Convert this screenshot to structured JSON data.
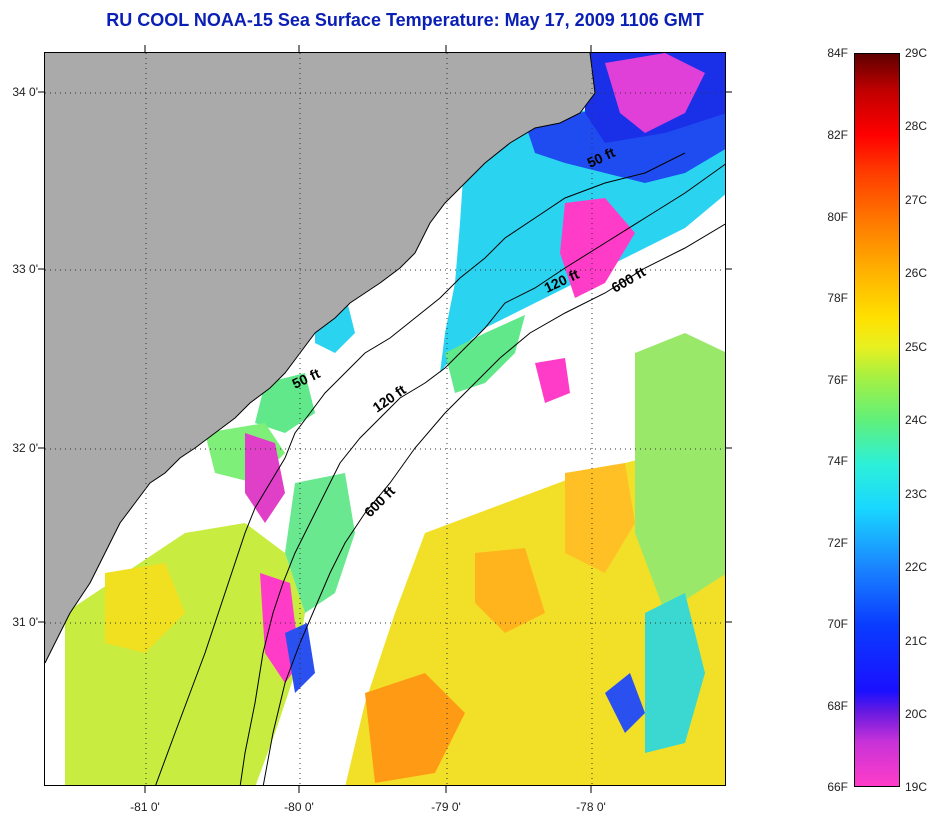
{
  "title": "RU COOL  NOAA-15  Sea Surface Temperature:  May 17, 2009 1106 GMT",
  "map": {
    "lat_labels": [
      "34 0'",
      "33 0'",
      "32 0'",
      "31 0'"
    ],
    "lon_labels": [
      "-81 0'",
      "-80 0'",
      "-79 0'",
      "-78 0'"
    ],
    "depth_labels": [
      "50 ft",
      "120 ft",
      "600 ft",
      "50 ft",
      "120 ft",
      "600 ft"
    ],
    "colors": {
      "land": "#aaaaaa",
      "no_data": "#ffffff",
      "frame": "#000000"
    }
  },
  "colorbar": {
    "f_labels": [
      "84F",
      "82F",
      "80F",
      "78F",
      "76F",
      "74F",
      "72F",
      "70F",
      "68F",
      "66F"
    ],
    "c_labels": [
      "29C",
      "28C",
      "27C",
      "26C",
      "25C",
      "24C",
      "23C",
      "22C",
      "21C",
      "20C",
      "19C"
    ]
  }
}
